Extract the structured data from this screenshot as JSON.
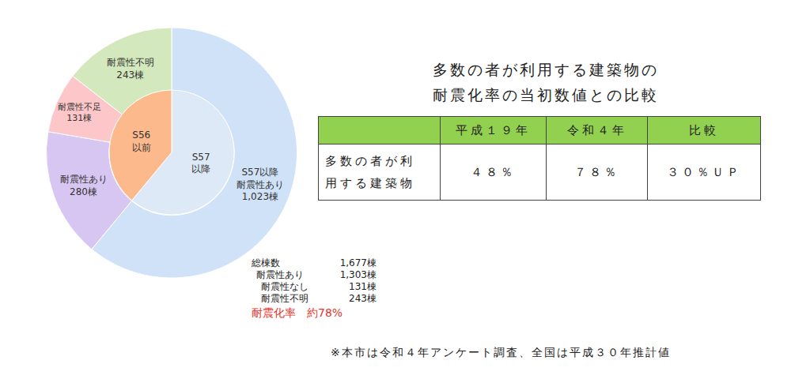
{
  "chart_data": {
    "type": "pie",
    "data_labels": true,
    "series": [
      {
        "categories": [
          "S57以降\n耐震性あり",
          "耐震性あり",
          "耐震性不足",
          "耐震性不明"
        ],
        "values": [
          1023,
          280,
          131,
          243
        ],
        "value_labels": [
          "1,023棟",
          "280棟",
          "131棟",
          "243棟"
        ],
        "colors": [
          "#cfe2f7",
          "#d8c6f2",
          "#fdc6c8",
          "#d3e8bd"
        ]
      },
      {
        "categories": [
          "S57\n以降",
          "S56\n以前"
        ],
        "values": [
          1023,
          654
        ],
        "colors": [
          "#dde9f6",
          "#fbb98c"
        ]
      }
    ]
  },
  "summary": {
    "rows": [
      [
        "総棟数",
        "1,677棟"
      ],
      [
        "耐震性あり",
        "1,303棟"
      ],
      [
        "耐震性なし",
        "131棟"
      ],
      [
        "耐震性不明",
        "243棟"
      ]
    ],
    "rate": [
      "耐震化率",
      "約78%"
    ]
  },
  "table": {
    "title": [
      "多数の者が利用する建築物の",
      "耐震化率の当初数値との比較"
    ],
    "header": [
      "",
      "平成１９年",
      "令和４年",
      "比較"
    ],
    "rows": [
      [
        "多数の者が利\n用する建築物",
        "４８％",
        "７８％",
        "３０％ＵＰ"
      ]
    ]
  },
  "note": "※本市は令和４年アンケート調査、全国は平成３０年推計値"
}
